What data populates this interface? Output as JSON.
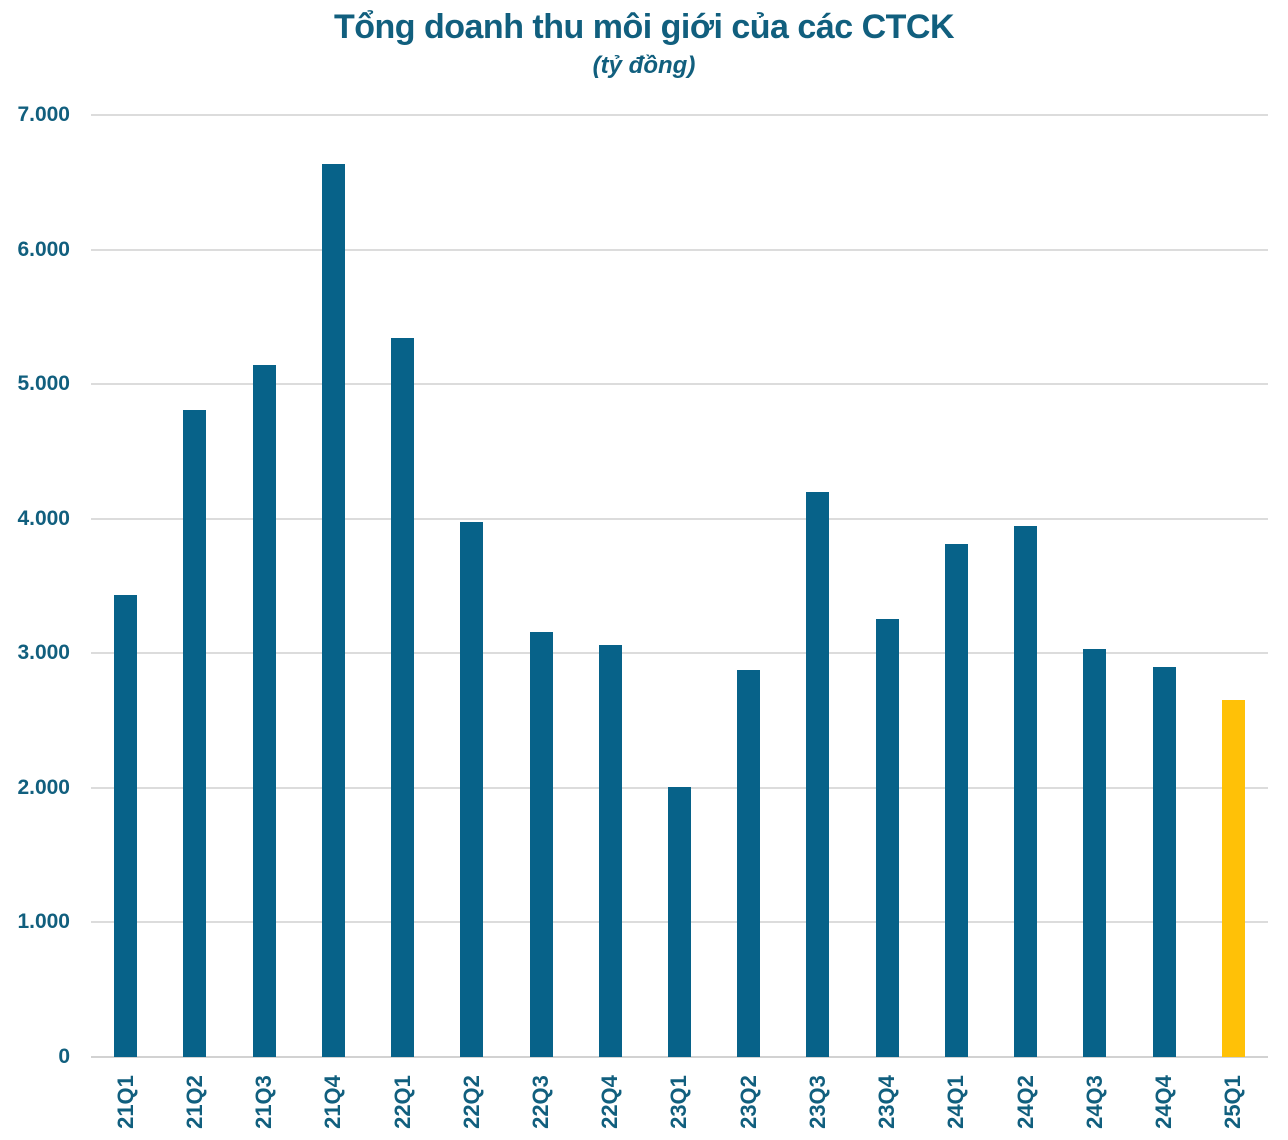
{
  "header": {
    "title": "Tổng doanh thu môi giới của các CTCK",
    "subtitle": "(tỷ đồng)"
  },
  "colors": {
    "bar": "#076289",
    "highlight_bar": "#FFC107",
    "text": "#115F7E",
    "gridline": "#DCDCDC",
    "axis_line": "#D2D2D2",
    "background": "#FFFFFF"
  },
  "chart_data": {
    "type": "bar",
    "title": "Tổng doanh thu môi giới của các CTCK",
    "subtitle": "(tỷ đồng)",
    "unit": "tỷ đồng",
    "categories": [
      "21Q1",
      "21Q2",
      "21Q3",
      "21Q4",
      "22Q1",
      "22Q2",
      "22Q3",
      "22Q4",
      "23Q1",
      "23Q2",
      "23Q3",
      "23Q4",
      "24Q1",
      "24Q2",
      "24Q3",
      "24Q4",
      "25Q1"
    ],
    "values": [
      3435,
      4810,
      5145,
      6635,
      5340,
      3975,
      3155,
      3060,
      2005,
      2875,
      4200,
      3255,
      3815,
      3945,
      3030,
      2895,
      2650
    ],
    "highlight_index": 16,
    "ylim": [
      0,
      7000
    ],
    "ytick_interval": 1000,
    "ytick_labels_bottom_to_top": [
      "0",
      "1.000",
      "2.000",
      "3.000",
      "4.000",
      "5.000",
      "6.000",
      "7.000"
    ],
    "grid": "horizontal",
    "legend": "none",
    "x_label_rotation_deg": -90
  }
}
